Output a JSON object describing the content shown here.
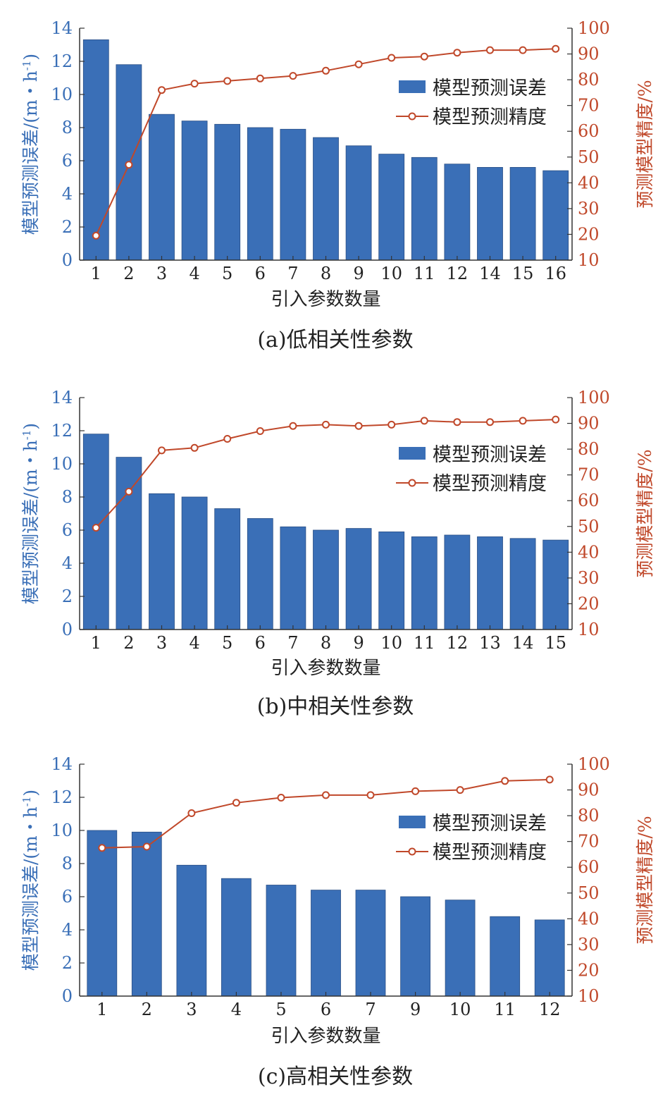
{
  "colors": {
    "bar": "#3a6fb7",
    "line": "#c0482a",
    "axis": "#333333"
  },
  "chart_data": [
    {
      "type": "bar",
      "caption": "(a)低相关性参数",
      "categories": [
        "1",
        "2",
        "3",
        "4",
        "5",
        "6",
        "7",
        "8",
        "9",
        "10",
        "11",
        "12",
        "14",
        "15",
        "16"
      ],
      "series": [
        {
          "name": "模型预测误差",
          "type": "bar",
          "axis": "left",
          "values": [
            13.3,
            11.8,
            8.8,
            8.4,
            8.2,
            8.0,
            7.9,
            7.4,
            6.9,
            6.4,
            6.2,
            5.8,
            5.6,
            5.6,
            5.4
          ]
        },
        {
          "name": "模型预测精度",
          "type": "line",
          "axis": "right",
          "values": [
            19.5,
            47,
            76,
            78.5,
            79.5,
            80.5,
            81.5,
            83.5,
            86,
            88.5,
            89,
            90.5,
            91.5,
            91.5,
            92
          ]
        }
      ],
      "xlabel": "引入参数数量",
      "ylabel_left": "模型预测误差/(m・h",
      "ylabel_left_sup": "-1",
      "ylabel_left_end": ")",
      "ylabel_right": "预测模型精度/%",
      "ylim_left": [
        0,
        14
      ],
      "yticks_left": [
        "0",
        "2",
        "4",
        "6",
        "8",
        "10",
        "12",
        "14"
      ],
      "ylim_right": [
        10,
        100
      ],
      "yticks_right": [
        "10",
        "20",
        "30",
        "40",
        "50",
        "60",
        "70",
        "80",
        "90",
        "100"
      ],
      "legend": "top-right",
      "grid": false
    },
    {
      "type": "bar",
      "caption": "(b)中相关性参数",
      "categories": [
        "1",
        "2",
        "3",
        "4",
        "5",
        "6",
        "7",
        "8",
        "9",
        "10",
        "11",
        "12",
        "13",
        "14",
        "15"
      ],
      "series": [
        {
          "name": "模型预测误差",
          "type": "bar",
          "axis": "left",
          "values": [
            11.8,
            10.4,
            8.2,
            8.0,
            7.3,
            6.7,
            6.2,
            6.0,
            6.1,
            5.9,
            5.6,
            5.7,
            5.6,
            5.5,
            5.4
          ]
        },
        {
          "name": "模型预测精度",
          "type": "line",
          "axis": "right",
          "values": [
            49.5,
            63.5,
            79.5,
            80.5,
            84,
            87,
            89,
            89.5,
            89,
            89.5,
            91,
            90.5,
            90.5,
            91,
            91.5
          ]
        }
      ],
      "xlabel": "引入参数数量",
      "ylabel_left": "模型预测误差/(m・h",
      "ylabel_left_sup": "-1",
      "ylabel_left_end": ")",
      "ylabel_right": "预测模型精度/%",
      "ylim_left": [
        0,
        14
      ],
      "yticks_left": [
        "0",
        "2",
        "4",
        "6",
        "8",
        "10",
        "12",
        "14"
      ],
      "ylim_right": [
        10,
        100
      ],
      "yticks_right": [
        "10",
        "20",
        "30",
        "40",
        "50",
        "60",
        "70",
        "80",
        "90",
        "100"
      ],
      "legend": "top-right",
      "grid": false
    },
    {
      "type": "bar",
      "caption": "(c)高相关性参数",
      "categories": [
        "1",
        "2",
        "3",
        "4",
        "5",
        "6",
        "7",
        "9",
        "10",
        "11",
        "12"
      ],
      "series": [
        {
          "name": "模型预测误差",
          "type": "bar",
          "axis": "left",
          "values": [
            10.0,
            9.9,
            7.9,
            7.1,
            6.7,
            6.4,
            6.4,
            6.0,
            5.8,
            4.8,
            4.6
          ]
        },
        {
          "name": "模型预测精度",
          "type": "line",
          "axis": "right",
          "values": [
            67.5,
            68,
            81,
            85,
            87,
            88,
            88,
            89.5,
            90,
            93.5,
            94
          ]
        }
      ],
      "xlabel": "引入参数数量",
      "ylabel_left": "模型预测误差/(m・h",
      "ylabel_left_sup": "-1",
      "ylabel_left_end": ")",
      "ylabel_right": "预测模型精度/%",
      "ylim_left": [
        0,
        14
      ],
      "yticks_left": [
        "0",
        "2",
        "4",
        "6",
        "8",
        "10",
        "12",
        "14"
      ],
      "ylim_right": [
        10,
        100
      ],
      "yticks_right": [
        "10",
        "20",
        "30",
        "40",
        "50",
        "60",
        "70",
        "80",
        "90",
        "100"
      ],
      "legend": "top-right",
      "grid": false
    }
  ]
}
